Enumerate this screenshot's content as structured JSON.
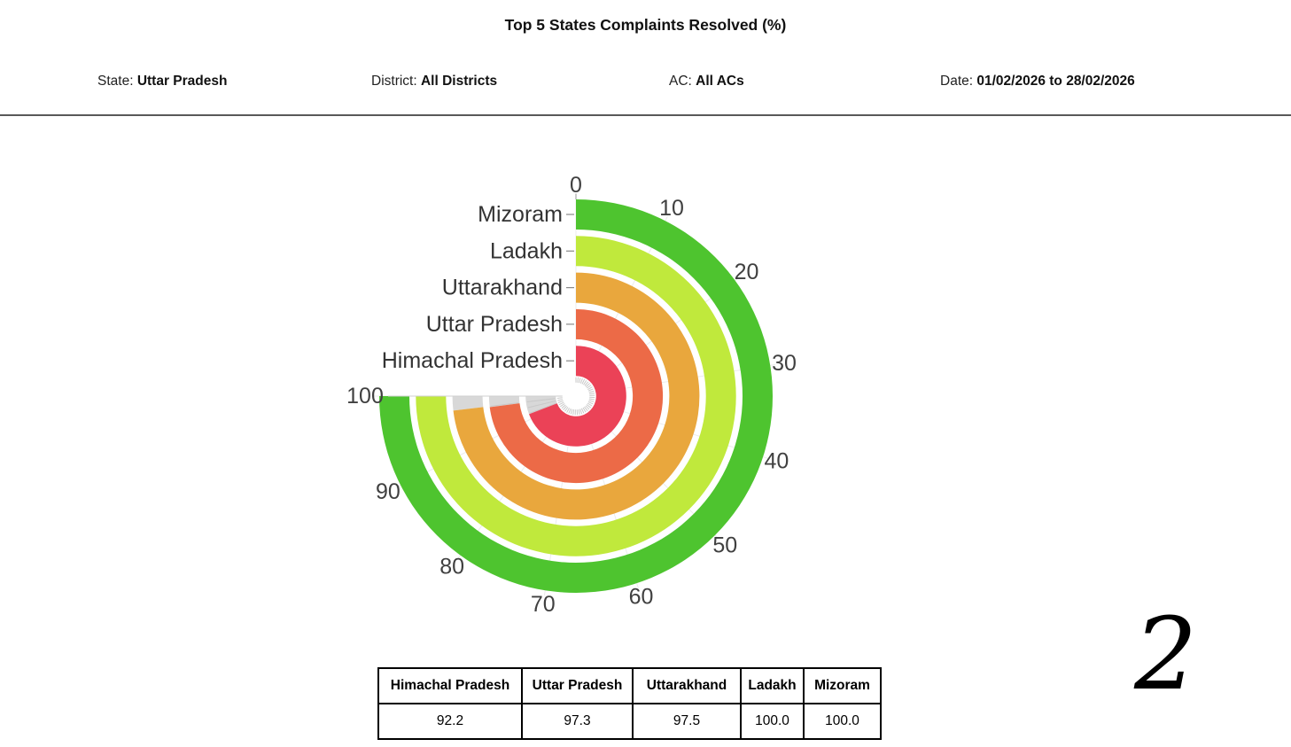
{
  "title": "Top 5 States Complaints Resolved (%)",
  "filters": {
    "state_label": "State:",
    "state_value": "Uttar Pradesh",
    "district_label": "District:",
    "district_value": "All Districts",
    "ac_label": "AC:",
    "ac_value": "All ACs",
    "date_label": "Date:",
    "date_value": "01/02/2026 to 28/02/2026"
  },
  "chart_data": {
    "type": "bar",
    "variant": "radial-bar",
    "title": "Top 5 States Complaints Resolved (%)",
    "categories": [
      "Mizoram",
      "Ladakh",
      "Uttarakhand",
      "Uttar Pradesh",
      "Himachal Pradesh"
    ],
    "values": [
      100.0,
      100.0,
      97.5,
      97.3,
      92.2
    ],
    "category_order": "outermost-ring-to-innermost-ring",
    "angle_axis": {
      "min": 0,
      "max": 100,
      "tick_interval": 10,
      "tick_labels": [
        "0",
        "10",
        "20",
        "30",
        "40",
        "50",
        "60",
        "70",
        "80",
        "90",
        "100"
      ],
      "span_degrees": 270,
      "start_position": "top",
      "direction": "clockwise"
    },
    "colors": [
      "#4ec42f",
      "#c0e93c",
      "#e9a73d",
      "#ec6a47",
      "#eb4257"
    ],
    "track_color": "#d8d8d8",
    "grid_color": "#ececec",
    "axis_label_color": "#404040",
    "category_label_color": "#333333",
    "legend": "none"
  },
  "table": {
    "headers": [
      "Himachal Pradesh",
      "Uttar Pradesh",
      "Uttarakhand",
      "Ladakh",
      "Mizoram"
    ],
    "values": [
      "92.2",
      "97.3",
      "97.5",
      "100.0",
      "100.0"
    ]
  },
  "page_number": "2"
}
